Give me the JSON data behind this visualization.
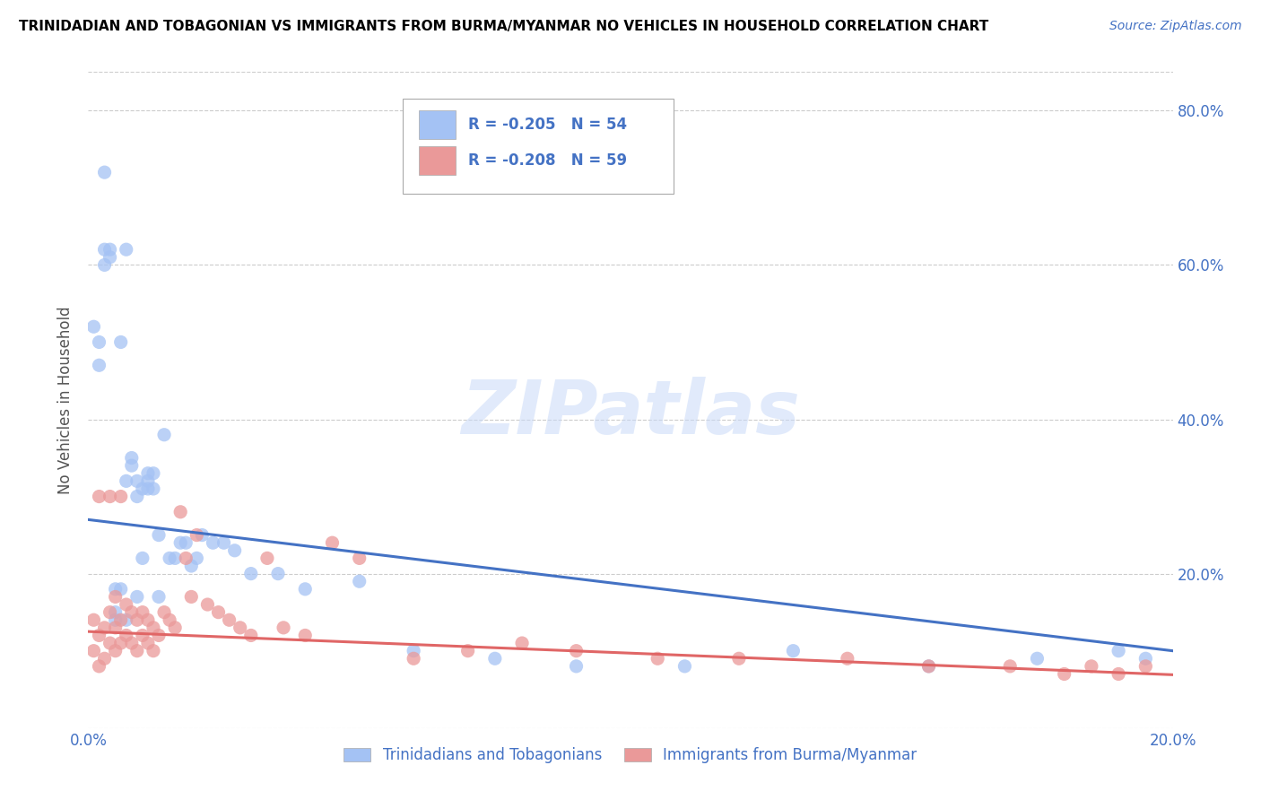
{
  "title": "TRINIDADIAN AND TOBAGONIAN VS IMMIGRANTS FROM BURMA/MYANMAR NO VEHICLES IN HOUSEHOLD CORRELATION CHART",
  "source": "Source: ZipAtlas.com",
  "ylabel": "No Vehicles in Household",
  "xlim": [
    0.0,
    0.2
  ],
  "ylim": [
    0.0,
    0.85
  ],
  "yticks": [
    0.0,
    0.2,
    0.4,
    0.6,
    0.8
  ],
  "ytick_labels": [
    "",
    "20.0%",
    "40.0%",
    "60.0%",
    "80.0%"
  ],
  "xticks": [
    0.0,
    0.05,
    0.1,
    0.15,
    0.2
  ],
  "xtick_labels": [
    "0.0%",
    "",
    "",
    "",
    "20.0%"
  ],
  "watermark": "ZIPatlas",
  "series": [
    {
      "name": "Trinidadians and Tobagonians",
      "R": -0.205,
      "N": 54,
      "color": "#a4c2f4",
      "trend_color": "#4472c4",
      "trend_intercept": 0.27,
      "trend_slope": -0.85,
      "points_x": [
        0.001,
        0.002,
        0.002,
        0.003,
        0.003,
        0.004,
        0.004,
        0.005,
        0.005,
        0.006,
        0.006,
        0.007,
        0.007,
        0.008,
        0.008,
        0.009,
        0.009,
        0.01,
        0.01,
        0.011,
        0.011,
        0.012,
        0.012,
        0.013,
        0.014,
        0.015,
        0.016,
        0.017,
        0.018,
        0.019,
        0.02,
        0.021,
        0.023,
        0.025,
        0.027,
        0.03,
        0.035,
        0.04,
        0.05,
        0.06,
        0.075,
        0.09,
        0.11,
        0.13,
        0.155,
        0.175,
        0.19,
        0.195,
        0.003,
        0.005,
        0.007,
        0.009,
        0.011,
        0.013
      ],
      "points_y": [
        0.52,
        0.5,
        0.47,
        0.62,
        0.6,
        0.62,
        0.61,
        0.15,
        0.14,
        0.5,
        0.18,
        0.62,
        0.14,
        0.35,
        0.34,
        0.32,
        0.3,
        0.31,
        0.22,
        0.32,
        0.31,
        0.33,
        0.31,
        0.25,
        0.38,
        0.22,
        0.22,
        0.24,
        0.24,
        0.21,
        0.22,
        0.25,
        0.24,
        0.24,
        0.23,
        0.2,
        0.2,
        0.18,
        0.19,
        0.1,
        0.09,
        0.08,
        0.08,
        0.1,
        0.08,
        0.09,
        0.1,
        0.09,
        0.72,
        0.18,
        0.32,
        0.17,
        0.33,
        0.17
      ]
    },
    {
      "name": "Immigrants from Burma/Myanmar",
      "R": -0.208,
      "N": 59,
      "color": "#ea9999",
      "trend_color": "#e06666",
      "trend_intercept": 0.125,
      "trend_slope": -0.28,
      "points_x": [
        0.001,
        0.001,
        0.002,
        0.002,
        0.003,
        0.003,
        0.004,
        0.004,
        0.005,
        0.005,
        0.005,
        0.006,
        0.006,
        0.007,
        0.007,
        0.008,
        0.008,
        0.009,
        0.009,
        0.01,
        0.01,
        0.011,
        0.011,
        0.012,
        0.012,
        0.013,
        0.014,
        0.015,
        0.016,
        0.017,
        0.018,
        0.019,
        0.02,
        0.022,
        0.024,
        0.026,
        0.028,
        0.03,
        0.033,
        0.036,
        0.04,
        0.045,
        0.05,
        0.06,
        0.07,
        0.08,
        0.09,
        0.105,
        0.12,
        0.14,
        0.155,
        0.17,
        0.18,
        0.185,
        0.19,
        0.195,
        0.002,
        0.004,
        0.006
      ],
      "points_y": [
        0.14,
        0.1,
        0.12,
        0.08,
        0.13,
        0.09,
        0.15,
        0.11,
        0.17,
        0.13,
        0.1,
        0.14,
        0.11,
        0.16,
        0.12,
        0.15,
        0.11,
        0.14,
        0.1,
        0.15,
        0.12,
        0.14,
        0.11,
        0.13,
        0.1,
        0.12,
        0.15,
        0.14,
        0.13,
        0.28,
        0.22,
        0.17,
        0.25,
        0.16,
        0.15,
        0.14,
        0.13,
        0.12,
        0.22,
        0.13,
        0.12,
        0.24,
        0.22,
        0.09,
        0.1,
        0.11,
        0.1,
        0.09,
        0.09,
        0.09,
        0.08,
        0.08,
        0.07,
        0.08,
        0.07,
        0.08,
        0.3,
        0.3,
        0.3
      ]
    }
  ],
  "background_color": "#ffffff",
  "grid_color": "#cccccc",
  "title_color": "#000000",
  "axis_color": "#4472c4",
  "marker_size": 120
}
